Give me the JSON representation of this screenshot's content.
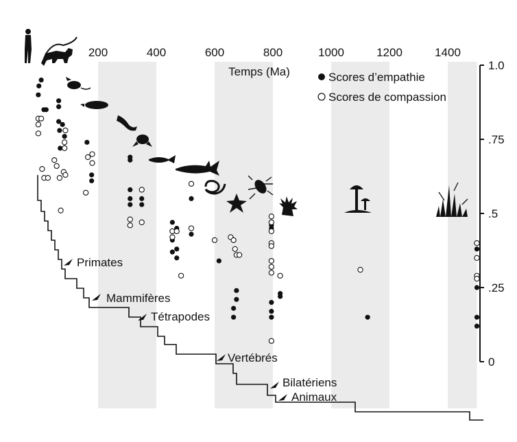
{
  "chart_data": {
    "type": "scatter",
    "title": "",
    "xlabel": "Temps (Ma)",
    "ylabel": "",
    "x_ticks": [
      200,
      400,
      600,
      800,
      1000,
      1200,
      1400
    ],
    "x_tick_labels": [
      "200",
      "400",
      "600",
      "800",
      "1000",
      "1200",
      "1400"
    ],
    "xlim": [
      0,
      1500
    ],
    "y_ticks": [
      0,
      0.25,
      0.5,
      0.75,
      1.0
    ],
    "y_tick_labels": [
      "0",
      ".25",
      ".5",
      ".75",
      "1.0"
    ],
    "ylim": [
      0,
      1.0
    ],
    "legend": {
      "placement": "top-right",
      "entries": [
        {
          "marker": "filled-circle",
          "label": "Scores d’empathie"
        },
        {
          "marker": "open-circle",
          "label": "Scores de compassion"
        }
      ]
    },
    "shaded_bands_x": [
      [
        200,
        400
      ],
      [
        600,
        800
      ],
      [
        1000,
        1200
      ],
      [
        1400,
        1500
      ]
    ],
    "series": [
      {
        "name": "Scores d’empathie",
        "marker": "filled",
        "points": [
          [
            -5,
            0.9
          ],
          [
            -3,
            0.93
          ],
          [
            5,
            0.95
          ],
          [
            14,
            0.85
          ],
          [
            22,
            0.85
          ],
          [
            65,
            0.86
          ],
          [
            65,
            0.88
          ],
          [
            65,
            0.81
          ],
          [
            68,
            0.78
          ],
          [
            78,
            0.8
          ],
          [
            85,
            0.76
          ],
          [
            70,
            0.72
          ],
          [
            162,
            0.74
          ],
          [
            178,
            0.63
          ],
          [
            178,
            0.61
          ],
          [
            310,
            0.69
          ],
          [
            310,
            0.68
          ],
          [
            310,
            0.58
          ],
          [
            310,
            0.55
          ],
          [
            310,
            0.53
          ],
          [
            350,
            0.55
          ],
          [
            350,
            0.53
          ],
          [
            455,
            0.47
          ],
          [
            470,
            0.45
          ],
          [
            455,
            0.41
          ],
          [
            455,
            0.37
          ],
          [
            470,
            0.38
          ],
          [
            470,
            0.35
          ],
          [
            520,
            0.55
          ],
          [
            520,
            0.43
          ],
          [
            615,
            0.34
          ],
          [
            665,
            0.18
          ],
          [
            665,
            0.15
          ],
          [
            675,
            0.24
          ],
          [
            675,
            0.21
          ],
          [
            795,
            0.46
          ],
          [
            795,
            0.45
          ],
          [
            795,
            0.2
          ],
          [
            795,
            0.17
          ],
          [
            795,
            0.15
          ],
          [
            825,
            0.22
          ],
          [
            825,
            0.23
          ],
          [
            1125,
            0.15
          ],
          [
            1500,
            0.38
          ],
          [
            1500,
            0.25
          ],
          [
            1500,
            0.15
          ],
          [
            1500,
            0.12
          ]
        ]
      },
      {
        "name": "Scores de compassion",
        "marker": "open",
        "points": [
          [
            -5,
            0.82
          ],
          [
            -5,
            0.8
          ],
          [
            -5,
            0.77
          ],
          [
            5,
            0.82
          ],
          [
            8,
            0.65
          ],
          [
            15,
            0.62
          ],
          [
            28,
            0.62
          ],
          [
            50,
            0.68
          ],
          [
            58,
            0.66
          ],
          [
            68,
            0.62
          ],
          [
            82,
            0.64
          ],
          [
            85,
            0.74
          ],
          [
            85,
            0.72
          ],
          [
            88,
            0.78
          ],
          [
            88,
            0.63
          ],
          [
            72,
            0.51
          ],
          [
            165,
            0.69
          ],
          [
            180,
            0.7
          ],
          [
            180,
            0.67
          ],
          [
            158,
            0.57
          ],
          [
            310,
            0.48
          ],
          [
            310,
            0.46
          ],
          [
            350,
            0.58
          ],
          [
            350,
            0.47
          ],
          [
            455,
            0.44
          ],
          [
            455,
            0.42
          ],
          [
            470,
            0.44
          ],
          [
            485,
            0.29
          ],
          [
            520,
            0.6
          ],
          [
            520,
            0.45
          ],
          [
            655,
            0.42
          ],
          [
            665,
            0.41
          ],
          [
            670,
            0.38
          ],
          [
            675,
            0.36
          ],
          [
            685,
            0.36
          ],
          [
            600,
            0.41
          ],
          [
            795,
            0.49
          ],
          [
            795,
            0.47
          ],
          [
            795,
            0.44
          ],
          [
            795,
            0.4
          ],
          [
            795,
            0.39
          ],
          [
            795,
            0.34
          ],
          [
            795,
            0.32
          ],
          [
            795,
            0.3
          ],
          [
            825,
            0.29
          ],
          [
            795,
            0.07
          ],
          [
            1100,
            0.31
          ],
          [
            1500,
            0.4
          ],
          [
            1500,
            0.35
          ],
          [
            1500,
            0.29
          ],
          [
            1500,
            0.28
          ]
        ]
      }
    ],
    "clade_labels": [
      "Primates",
      "Mammifères",
      "Tétrapodes",
      "Vertébrés",
      "Bilatériens",
      "Animaux"
    ],
    "silhouettes": [
      "human-icon",
      "monkey-icon",
      "rat-icon",
      "platypus-icon",
      "lizard-icon",
      "frog-icon",
      "fish-icon",
      "shark-icon",
      "snake-icon",
      "starfish-icon",
      "beetle-icon",
      "anemone-icon",
      "mushroom-icon",
      "plant-icon"
    ]
  }
}
